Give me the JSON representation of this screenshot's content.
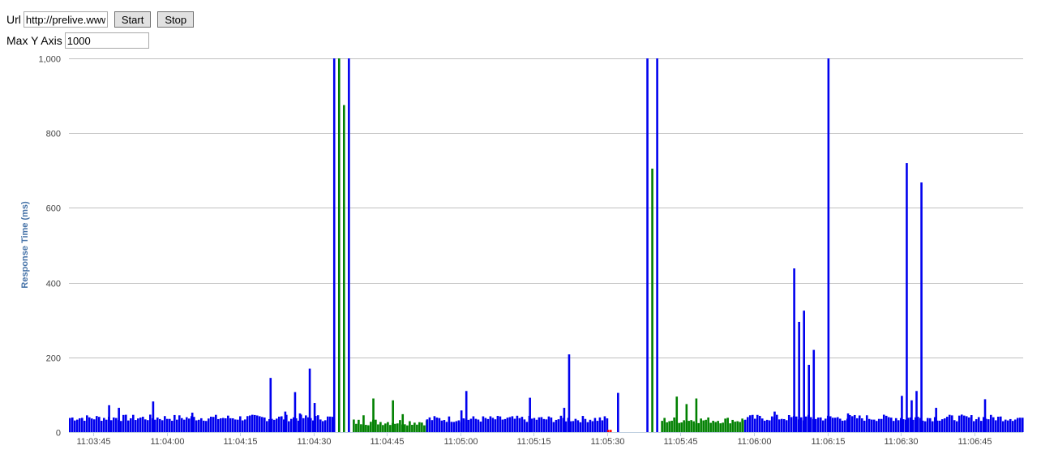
{
  "controls": {
    "url_label": "Url",
    "url_value": "http://prelive.www",
    "start_label": "Start",
    "stop_label": "Stop",
    "maxy_label": "Max Y Axis",
    "maxy_value": "1000"
  },
  "colors": {
    "series_blue": "#0000ee",
    "series_green": "#008000",
    "series_red": "#ff0000",
    "grid": "#c0c0c0",
    "axis_title": "#4572a7"
  },
  "chart_data": {
    "type": "bar",
    "ylabel": "Response Time (ms)",
    "ylim": [
      0,
      1000
    ],
    "yticks": [
      0,
      200,
      400,
      600,
      800,
      1000
    ],
    "ytick_labels": [
      "0",
      "200",
      "400",
      "600",
      "800",
      "1,000"
    ],
    "x_start": "11:03:40",
    "x_end": "11:06:55",
    "xticks": [
      "11:03:45",
      "11:04:00",
      "11:04:15",
      "11:04:30",
      "11:04:45",
      "11:05:00",
      "11:05:15",
      "11:05:30",
      "11:05:45",
      "11:06:00",
      "11:06:15",
      "11:06:30",
      "11:06:45"
    ],
    "grid": true,
    "legend": "none",
    "spikes": [
      {
        "t": "11:03:48",
        "value": 72,
        "series": "blue"
      },
      {
        "t": "11:03:50",
        "value": 65,
        "series": "blue"
      },
      {
        "t": "11:03:57",
        "value": 82,
        "series": "blue"
      },
      {
        "t": "11:04:05",
        "value": 52,
        "series": "blue"
      },
      {
        "t": "11:04:21",
        "value": 145,
        "series": "blue"
      },
      {
        "t": "11:04:24",
        "value": 55,
        "series": "blue"
      },
      {
        "t": "11:04:26",
        "value": 107,
        "series": "blue"
      },
      {
        "t": "11:04:27",
        "value": 50,
        "series": "blue"
      },
      {
        "t": "11:04:29",
        "value": 170,
        "series": "blue"
      },
      {
        "t": "11:04:30",
        "value": 78,
        "series": "blue"
      },
      {
        "t": "11:04:34",
        "value": 1000,
        "series": "blue"
      },
      {
        "t": "11:04:35",
        "value": 1000,
        "series": "green"
      },
      {
        "t": "11:04:36",
        "value": 875,
        "series": "green"
      },
      {
        "t": "11:04:37",
        "value": 1000,
        "series": "blue"
      },
      {
        "t": "11:04:40",
        "value": 45,
        "series": "green"
      },
      {
        "t": "11:04:42",
        "value": 90,
        "series": "green"
      },
      {
        "t": "11:04:46",
        "value": 85,
        "series": "green"
      },
      {
        "t": "11:04:48",
        "value": 48,
        "series": "green"
      },
      {
        "t": "11:05:01",
        "value": 110,
        "series": "blue"
      },
      {
        "t": "11:05:00",
        "value": 58,
        "series": "blue"
      },
      {
        "t": "11:05:14",
        "value": 92,
        "series": "blue"
      },
      {
        "t": "11:05:21",
        "value": 65,
        "series": "blue"
      },
      {
        "t": "11:05:22",
        "value": 208,
        "series": "blue"
      },
      {
        "t": "11:05:32",
        "value": 105,
        "series": "blue"
      },
      {
        "t": "11:05:38",
        "value": 1000,
        "series": "blue"
      },
      {
        "t": "11:05:39",
        "value": 705,
        "series": "green"
      },
      {
        "t": "11:05:40",
        "value": 1000,
        "series": "blue"
      },
      {
        "t": "11:05:44",
        "value": 95,
        "series": "green"
      },
      {
        "t": "11:05:46",
        "value": 75,
        "series": "green"
      },
      {
        "t": "11:05:48",
        "value": 90,
        "series": "green"
      },
      {
        "t": "11:06:04",
        "value": 55,
        "series": "blue"
      },
      {
        "t": "11:06:08",
        "value": 438,
        "series": "blue"
      },
      {
        "t": "11:06:09",
        "value": 295,
        "series": "blue"
      },
      {
        "t": "11:06:10",
        "value": 325,
        "series": "blue"
      },
      {
        "t": "11:06:11",
        "value": 180,
        "series": "blue"
      },
      {
        "t": "11:06:12",
        "value": 220,
        "series": "blue"
      },
      {
        "t": "11:06:15",
        "value": 1000,
        "series": "blue"
      },
      {
        "t": "11:06:19",
        "value": 50,
        "series": "blue"
      },
      {
        "t": "11:06:30",
        "value": 97,
        "series": "blue"
      },
      {
        "t": "11:06:31",
        "value": 720,
        "series": "blue"
      },
      {
        "t": "11:06:32",
        "value": 85,
        "series": "blue"
      },
      {
        "t": "11:06:33",
        "value": 110,
        "series": "blue"
      },
      {
        "t": "11:06:34",
        "value": 668,
        "series": "blue"
      },
      {
        "t": "11:06:37",
        "value": 65,
        "series": "blue"
      },
      {
        "t": "11:06:47",
        "value": 88,
        "series": "blue"
      }
    ],
    "segments": [
      {
        "from": "11:03:40",
        "to": "11:04:34",
        "series": "blue",
        "base": 38
      },
      {
        "from": "11:04:38",
        "to": "11:04:53",
        "series": "green",
        "base": 27
      },
      {
        "from": "11:04:53",
        "to": "11:05:30",
        "series": "blue",
        "base": 35
      },
      {
        "from": "11:05:30",
        "to": "11:05:31",
        "series": "red",
        "base": 6
      },
      {
        "from": "11:05:41",
        "to": "11:05:58",
        "series": "green",
        "base": 32
      },
      {
        "from": "11:05:58",
        "to": "11:06:55",
        "series": "blue",
        "base": 38
      }
    ]
  }
}
